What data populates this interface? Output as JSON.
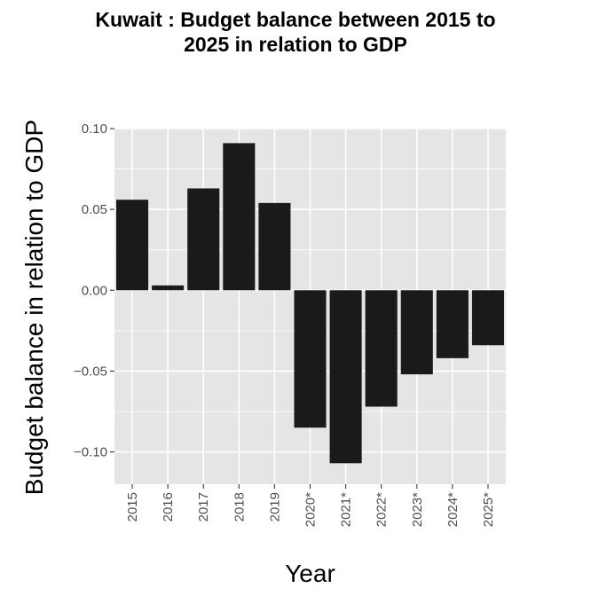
{
  "chart_data": {
    "type": "bar",
    "title_line1": "Kuwait : Budget balance between 2015 to",
    "title_line2": "2025 in relation to GDP",
    "xlabel": "Year",
    "ylabel": "Budget balance in relation to GDP",
    "categories": [
      "2015",
      "2016",
      "2017",
      "2018",
      "2019",
      "2020*",
      "2021*",
      "2022*",
      "2023*",
      "2024*",
      "2025*"
    ],
    "values": [
      0.056,
      0.003,
      0.063,
      0.091,
      0.054,
      -0.085,
      -0.107,
      -0.072,
      -0.052,
      -0.042,
      -0.034
    ],
    "yticks": [
      0.1,
      0.05,
      0.0,
      -0.05,
      -0.1
    ],
    "ytick_labels": [
      "0.10",
      "0.05",
      "0.00",
      "−0.05",
      "−0.10"
    ],
    "ylim": [
      -0.12,
      0.1
    ],
    "grid": true,
    "bar_color": "#1a1a1a",
    "panel_color": "#e5e5e5",
    "grid_color": "#ffffff"
  }
}
